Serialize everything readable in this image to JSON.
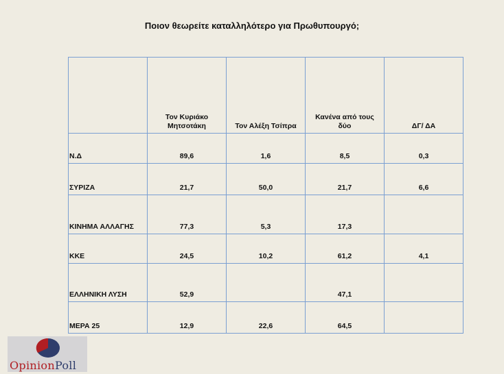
{
  "title": "Ποιον θεωρείτε καταλληλότερο για Πρωθυπουργό;",
  "table": {
    "headers": [
      "",
      "Τον Κυριάκο Μητσοτάκη",
      "Τον Αλέξη Τσίπρα",
      "Κανένα από τους δύο",
      "ΔΓ/ ΔΑ"
    ],
    "rows": [
      {
        "label": "Ν.Δ",
        "values": [
          "89,6",
          "1,6",
          "8,5",
          "0,3"
        ]
      },
      {
        "label": "ΣΥΡΙΖΑ",
        "values": [
          "21,7",
          "50,0",
          "21,7",
          "6,6"
        ]
      },
      {
        "label": "ΚΙΝΗΜΑ ΑΛΛΑΓΗΣ",
        "values": [
          "77,3",
          "5,3",
          "17,3",
          ""
        ]
      },
      {
        "label": "ΚΚΕ",
        "values": [
          "24,5",
          "10,2",
          "61,2",
          "4,1"
        ]
      },
      {
        "label": "ΕΛΛΗΝΙΚΗ ΛΥΣΗ",
        "values": [
          "52,9",
          "",
          "47,1",
          ""
        ]
      },
      {
        "label": "ΜΕΡΑ 25",
        "values": [
          "12,9",
          "22,6",
          "64,5",
          ""
        ]
      }
    ]
  },
  "logo": {
    "text_part1": "Opinion",
    "text_part2": "Poll",
    "color_red": "#b01e23",
    "color_navy": "#2f3d6b"
  },
  "colors": {
    "background": "#efece2",
    "grid": "#7a9fd2"
  }
}
